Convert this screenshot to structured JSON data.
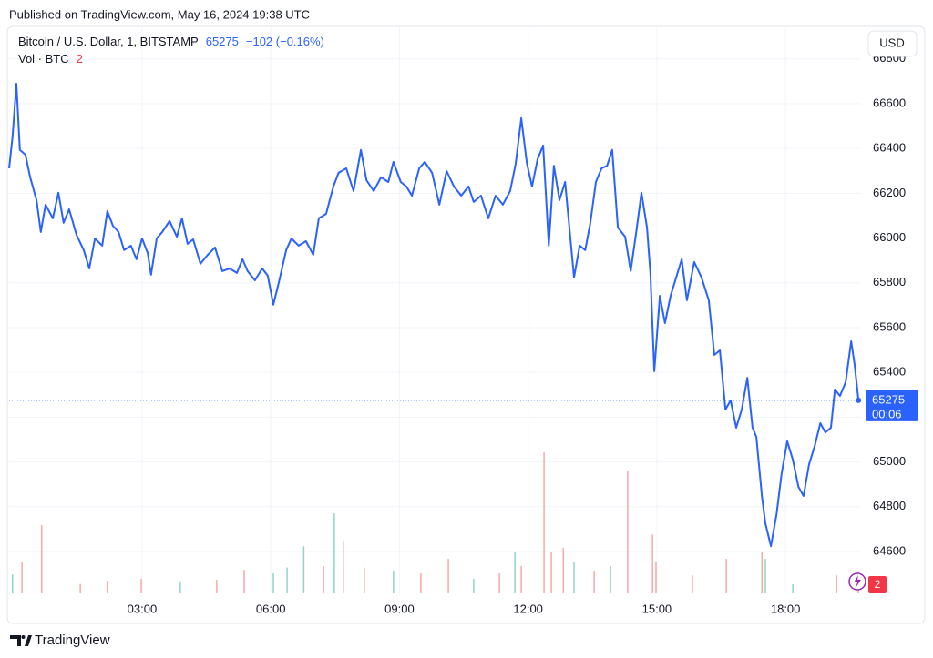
{
  "published": "Published on TradingView.com, May 16, 2024 19:38 UTC",
  "chart_data": {
    "type": "line",
    "title": "Bitcoin / U.S. Dollar, 1, BITSTAMP",
    "change": "−102 (−0.16%)",
    "currency": "USD",
    "countdown": "00:06",
    "grid": true,
    "series": [
      {
        "name": "BTCUSD",
        "color": "#2962ff",
        "x": [
          -0.1,
          -0.02,
          0.07,
          0.15,
          0.28,
          0.39,
          0.54,
          0.64,
          0.75,
          0.92,
          1.05,
          1.17,
          1.3,
          1.47,
          1.64,
          1.77,
          1.9,
          2.07,
          2.19,
          2.32,
          2.45,
          2.58,
          2.74,
          2.87,
          3.0,
          3.13,
          3.21,
          3.34,
          3.47,
          3.64,
          3.81,
          3.93,
          4.06,
          4.19,
          4.36,
          4.53,
          4.7,
          4.87,
          5.04,
          5.21,
          5.34,
          5.46,
          5.63,
          5.8,
          5.93,
          6.06,
          6.19,
          6.36,
          6.48,
          6.65,
          6.82,
          6.99,
          7.12,
          7.29,
          7.46,
          7.58,
          7.76,
          7.93,
          8.1,
          8.23,
          8.4,
          8.57,
          8.74,
          8.86,
          9.03,
          9.16,
          9.29,
          9.46,
          9.59,
          9.76,
          9.93,
          10.1,
          10.27,
          10.44,
          10.61,
          10.73,
          10.9,
          11.07,
          11.24,
          11.41,
          11.58,
          11.71,
          11.84,
          11.97,
          12.09,
          12.22,
          12.35,
          12.48,
          12.6,
          12.73,
          12.86,
          12.99,
          13.07,
          13.2,
          13.33,
          13.45,
          13.58,
          13.71,
          13.84,
          13.96,
          14.09,
          14.26,
          14.39,
          14.52,
          14.64,
          14.77,
          14.85,
          14.94,
          15.07,
          15.19,
          15.32,
          15.45,
          15.58,
          15.7,
          15.87,
          16.04,
          16.21,
          16.34,
          16.47,
          16.6,
          16.72,
          16.85,
          16.98,
          17.11,
          17.23,
          17.32,
          17.45,
          17.53,
          17.66,
          17.79,
          17.91,
          18.04,
          18.17,
          18.3,
          18.42,
          18.55,
          18.68,
          18.81,
          18.93,
          19.06,
          19.15,
          19.27,
          19.4,
          19.53,
          19.61,
          19.7
        ],
        "values": [
          66311,
          66454,
          66689,
          66393,
          66372,
          66271,
          66169,
          66027,
          66149,
          66088,
          66202,
          66068,
          66128,
          66015,
          65946,
          65864,
          65998,
          65966,
          66120,
          66055,
          66027,
          65946,
          65966,
          65905,
          65998,
          65933,
          65836,
          65998,
          66027,
          66076,
          66006,
          66088,
          65974,
          65994,
          65885,
          65925,
          65958,
          65852,
          65864,
          65844,
          65905,
          65852,
          65811,
          65864,
          65832,
          65702,
          65803,
          65946,
          65998,
          65966,
          65986,
          65925,
          66088,
          66108,
          66230,
          66291,
          66311,
          66210,
          66393,
          66258,
          66210,
          66271,
          66250,
          66340,
          66250,
          66230,
          66189,
          66311,
          66340,
          66291,
          66149,
          66299,
          66230,
          66189,
          66230,
          66161,
          66189,
          66088,
          66189,
          66149,
          66210,
          66332,
          66535,
          66332,
          66230,
          66352,
          66413,
          65966,
          66323,
          66169,
          66250,
          65986,
          65824,
          65966,
          65946,
          66068,
          66250,
          66311,
          66323,
          66393,
          66047,
          66006,
          65852,
          66027,
          66202,
          66047,
          65844,
          65405,
          65742,
          65620,
          65742,
          65824,
          65905,
          65722,
          65893,
          65824,
          65722,
          65478,
          65498,
          65234,
          65275,
          65153,
          65234,
          65376,
          65153,
          65112,
          64848,
          64726,
          64624,
          64767,
          64950,
          65092,
          65011,
          64889,
          64848,
          64990,
          65071,
          65173,
          65132,
          65153,
          65324,
          65295,
          65356,
          65539,
          65437,
          65275
        ]
      }
    ],
    "volume": {
      "name": "Vol · BTC",
      "value_color": "#f23645",
      "x": [
        -0.02,
        0.2,
        0.66,
        1.56,
        2.19,
        2.98,
        3.89,
        4.74,
        5.38,
        6.06,
        6.38,
        6.77,
        7.23,
        7.48,
        7.69,
        8.18,
        8.86,
        9.5,
        10.14,
        10.73,
        11.33,
        11.69,
        11.84,
        12.37,
        12.54,
        12.82,
        13.07,
        13.54,
        13.92,
        14.32,
        14.9,
        14.98,
        15.83,
        16.62,
        17.45,
        17.53,
        18.17,
        19.19,
        19.7
      ],
      "values": [
        8,
        13.5,
        29,
        4,
        5.4,
        6.2,
        4.6,
        5.8,
        10,
        8.5,
        11,
        20,
        11.6,
        34,
        22.5,
        11,
        9.7,
        8.5,
        14.7,
        6.2,
        8.5,
        17.4,
        11.6,
        60,
        17.4,
        19.4,
        13.5,
        9.7,
        11.6,
        52,
        25,
        13.5,
        7.7,
        14.7,
        17.4,
        14.7,
        3.9,
        7.7,
        2
      ],
      "colors": [
        "#8ed4c8",
        "#f7a9a7",
        "#f7a9a7",
        "#f7a9a7",
        "#f7a9a7",
        "#f7a9a7",
        "#8ed4c8",
        "#f7a9a7",
        "#f7a9a7",
        "#8ed4c8",
        "#8ed4c8",
        "#8ed4c8",
        "#f7a9a7",
        "#8ed4c8",
        "#f7a9a7",
        "#f7a9a7",
        "#8ed4c8",
        "#f7a9a7",
        "#f7a9a7",
        "#8ed4c8",
        "#f7a9a7",
        "#8ed4c8",
        "#f7a9a7",
        "#f7a9a7",
        "#f7a9a7",
        "#f7a9a7",
        "#8ed4c8",
        "#f7a9a7",
        "#8ed4c8",
        "#f7a9a7",
        "#f7a9a7",
        "#f7a9a7",
        "#f7a9a7",
        "#f7a9a7",
        "#f7a9a7",
        "#8ed4c8",
        "#8ed4c8",
        "#f7a9a7",
        "#f7a9a7"
      ]
    },
    "xlim": [
      -0.1,
      19.76
    ],
    "xticks": [
      {
        "value": 3,
        "label": "03:00"
      },
      {
        "value": 6,
        "label": "06:00"
      },
      {
        "value": 9,
        "label": "09:00"
      },
      {
        "value": 12,
        "label": "12:00"
      },
      {
        "value": 15,
        "label": "15:00"
      },
      {
        "value": 18,
        "label": "18:00"
      }
    ],
    "ylim": [
      64413,
      66941
    ],
    "yticks": [
      64600,
      64800,
      65000,
      65200,
      65400,
      65600,
      65800,
      66000,
      66200,
      66400,
      66600,
      66800
    ]
  },
  "footer": "TradingView"
}
